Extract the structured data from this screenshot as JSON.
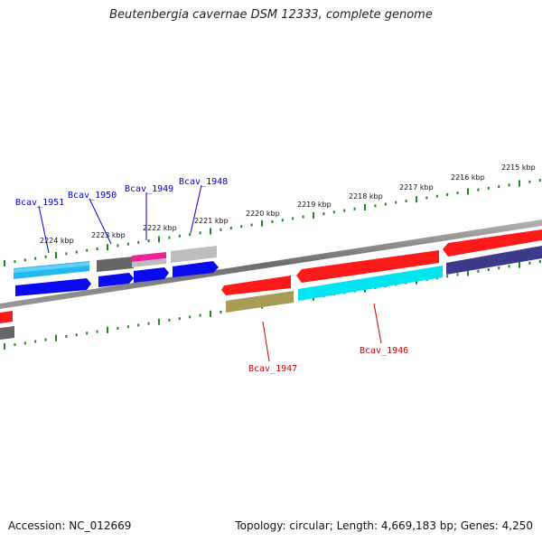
{
  "title": "Beutenbergia cavernae DSM 12333, complete genome",
  "footer": {
    "accession": "Accession: NC_012669",
    "summary": "Topology: circular; Length: 4,669,183 bp; Genes: 4,250"
  },
  "scale_labels": [
    "2224 kbp",
    "2223 kbp",
    "2222 kbp",
    "2221 kbp",
    "2220 kbp",
    "2219 kbp",
    "2218 kbp",
    "2217 kbp",
    "2216 kbp",
    "2215 kbp"
  ],
  "gene_labels": [
    {
      "name": "Bcav_1951",
      "color": "#0000cc"
    },
    {
      "name": "Bcav_1950",
      "color": "#0000cc"
    },
    {
      "name": "Bcav_1949",
      "color": "#0000cc"
    },
    {
      "name": "Bcav_1948",
      "color": "#0000cc"
    },
    {
      "name": "Bcav_1947",
      "color": "#cc0000"
    },
    {
      "name": "Bcav_1946",
      "color": "#cc0000"
    }
  ],
  "colors": {
    "backbone": "#8a8a8a",
    "tick": "#1a8a1a",
    "red": "#ff1a1a",
    "blue": "#0a0aee",
    "cyan": "#00e5f0",
    "light_blue": "#22b8f0",
    "olive": "#a89c55",
    "dark_grey": "#666666",
    "light_grey": "#bdbdbd",
    "magenta": "#f0209a",
    "navy": "#3d3a8c"
  }
}
